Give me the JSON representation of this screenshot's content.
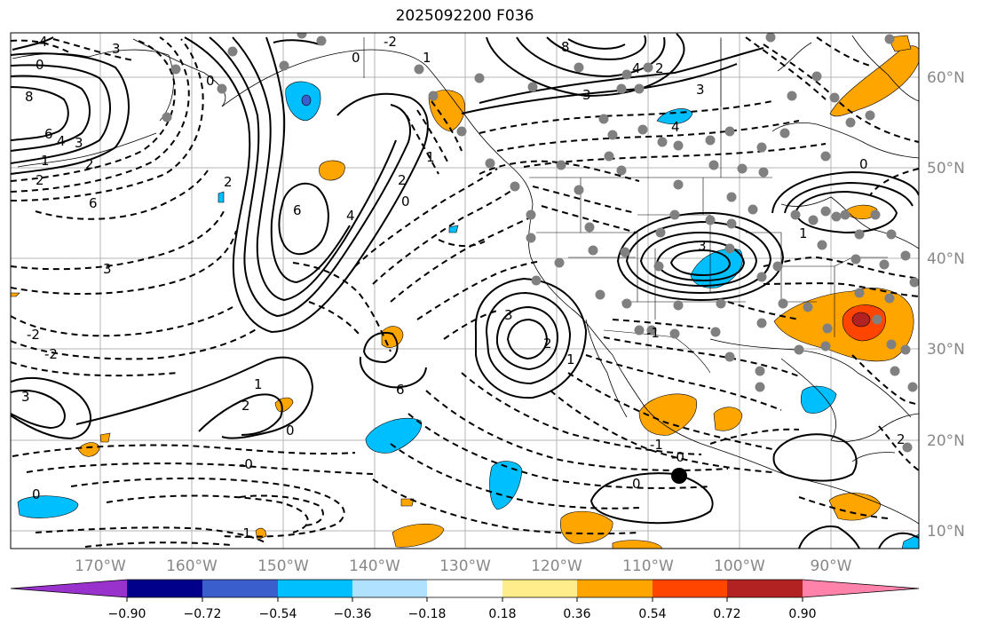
{
  "title": "2025092200 F036",
  "lat_labels": [
    "60°N",
    "50°N",
    "40°N",
    "30°N",
    "20°N",
    "10°N"
  ],
  "lon_labels": [
    "170°W",
    "160°W",
    "150°W",
    "140°W",
    "130°W",
    "120°W",
    "110°W",
    "100°W",
    "90°W"
  ],
  "contour_labels": [
    "4",
    "3",
    "0",
    "8",
    "6",
    "4",
    "3",
    "2",
    "1",
    "2",
    "0",
    "6",
    "3",
    "2",
    "-2",
    "-2",
    "3",
    "2",
    "1",
    "0",
    "-0",
    "0",
    "-1",
    "-1",
    "0",
    "-0",
    "6",
    "4",
    "2",
    "1",
    "0",
    "3",
    "2",
    "1",
    "6",
    "8",
    "4",
    "3",
    "3",
    "2",
    "1",
    "0",
    "-1",
    "-2",
    "4",
    "3",
    "1",
    "0",
    "2"
  ],
  "colorbar": {
    "ticks": [
      "−0.90",
      "−0.72",
      "−0.54",
      "−0.36",
      "−0.18",
      "0.18",
      "0.36",
      "0.54",
      "0.72",
      "0.90"
    ],
    "colors": [
      "#9932cc",
      "#00008b",
      "#3a5fcd",
      "#00bfff",
      "#b0e2ff",
      "#ffffff",
      "#ffec8b",
      "#ffa500",
      "#ff4500",
      "#b22222",
      "#ff82ab"
    ]
  }
}
